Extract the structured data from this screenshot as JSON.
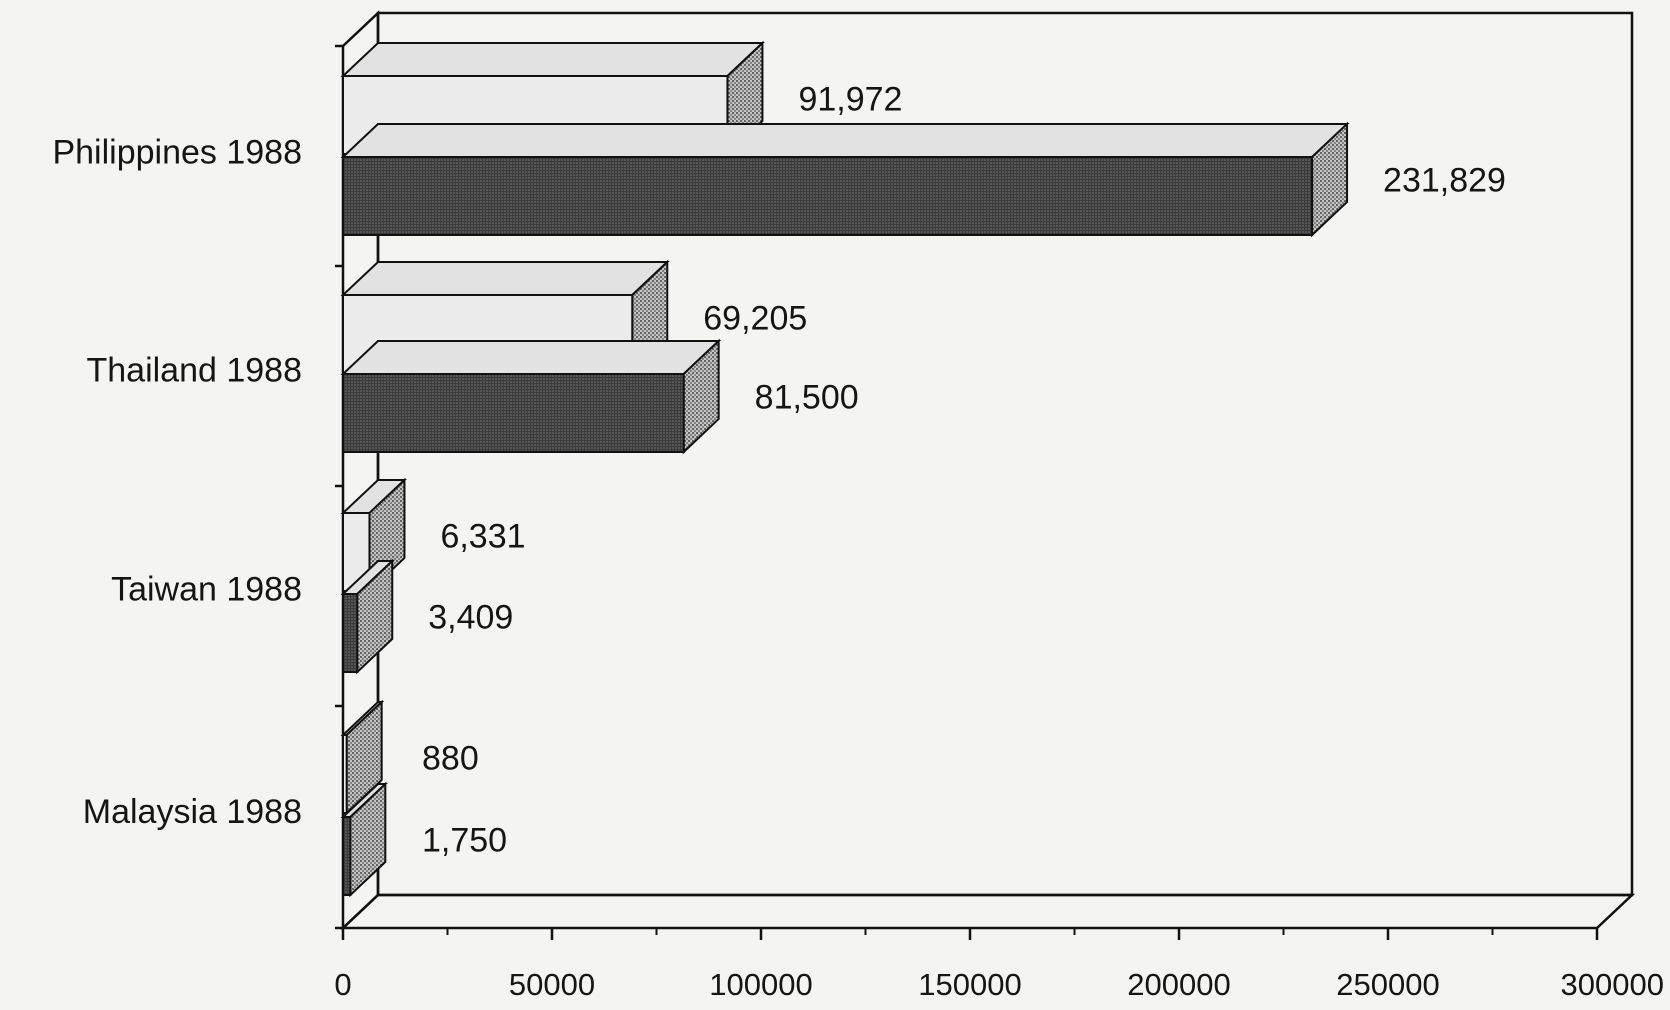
{
  "chart_data": {
    "type": "bar",
    "orientation": "horizontal",
    "style": "3d",
    "categories": [
      "Philippines 1988",
      "Thailand 1988",
      "Taiwan 1988",
      "Malaysia 1988"
    ],
    "series": [
      {
        "values": [
          91972,
          69205,
          6331,
          880
        ]
      },
      {
        "values": [
          231829,
          81500,
          3409,
          1750
        ]
      }
    ],
    "value_labels": [
      [
        "91,972",
        "69,205",
        "6,331",
        "880"
      ],
      [
        "231,829",
        "81,500",
        "3,409",
        "1,750"
      ]
    ],
    "xticks": [
      "0",
      "50000",
      "100000",
      "150000",
      "200000",
      "250000",
      "300000"
    ],
    "xlim": [
      0,
      300000
    ],
    "title": "",
    "xlabel": "",
    "ylabel": "",
    "grid": false,
    "legend": "none",
    "colors": {
      "series_0": "#ececec",
      "series_1": "#3a3a3a",
      "side": "#9a9a9a",
      "top": "#e2e2e2",
      "outline": "#111111",
      "background": "#f4f4f2"
    }
  }
}
